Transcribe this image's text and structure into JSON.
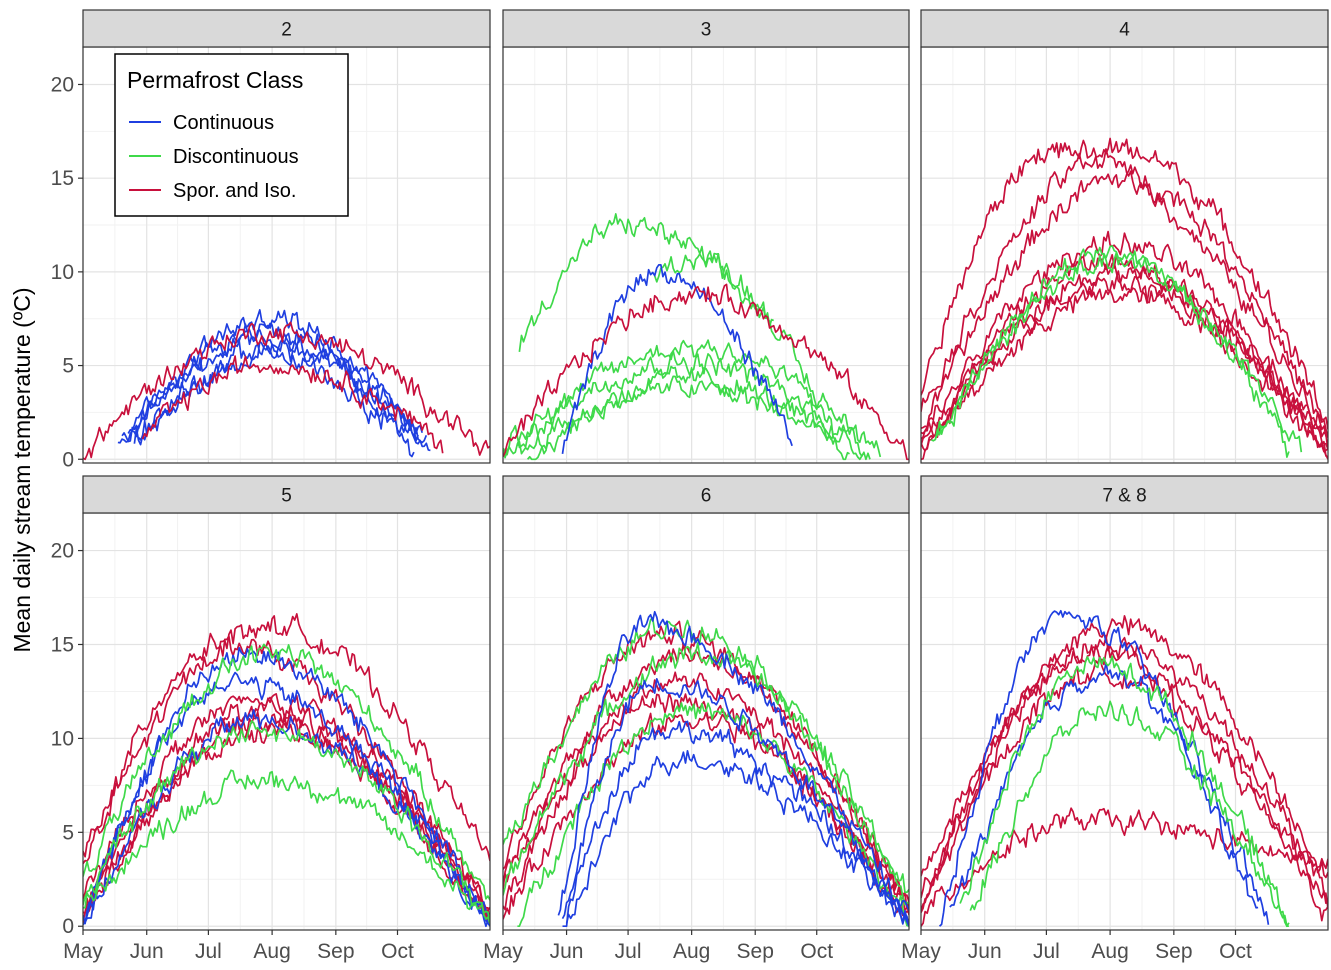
{
  "chart_data": {
    "type": "line",
    "ylabel": "Mean daily stream temperature (ºC)",
    "xlabel": "",
    "ylim": [
      0,
      20
    ],
    "y_ticks": [
      0,
      5,
      10,
      15,
      20
    ],
    "x_ticks": [
      "May",
      "Jun",
      "Jul",
      "Aug",
      "Sep",
      "Oct"
    ],
    "x_tick_days": [
      121,
      152,
      182,
      213,
      244,
      274
    ],
    "xlim_days": [
      121,
      319
    ],
    "grid": true,
    "legend": {
      "title": "Permafrost Class",
      "placement": "inside top-left of first panel",
      "entries": [
        {
          "name": "Continuous",
          "color": "#1f3fe0"
        },
        {
          "name": "Discontinuous",
          "color": "#3fd94a"
        },
        {
          "name": "Spor. and Iso.",
          "color": "#c8103c"
        }
      ]
    },
    "facets": [
      {
        "label": "2",
        "series": [
          {
            "class": "Continuous",
            "start": 138,
            "end": 290,
            "peak_day": 213,
            "peak": 7.5,
            "base_start": 0.5,
            "base_end": 0.5
          },
          {
            "class": "Continuous",
            "start": 140,
            "end": 288,
            "peak_day": 208,
            "peak": 6.8,
            "base_start": 0.8,
            "base_end": 0.8
          },
          {
            "class": "Continuous",
            "start": 143,
            "end": 284,
            "peak_day": 206,
            "peak": 6.3,
            "base_start": 1.0,
            "base_end": 1.0
          },
          {
            "class": "Continuous",
            "start": 146,
            "end": 282,
            "peak_day": 210,
            "peak": 5.5,
            "base_start": 1.0,
            "base_end": 0.5
          },
          {
            "class": "Continuous",
            "start": 148,
            "end": 286,
            "peak_day": 214,
            "peak": 5.9,
            "base_start": 1.0,
            "base_end": 1.2
          },
          {
            "class": "Spor. and Iso.",
            "start": 121,
            "end": 319,
            "peak_day": 212,
            "peak": 6.8,
            "base_start": 0.3,
            "base_end": 0.3
          },
          {
            "class": "Spor. and Iso.",
            "start": 150,
            "end": 296,
            "peak_day": 212,
            "peak": 5.1,
            "base_start": 1.2,
            "base_end": 0.8
          }
        ]
      },
      {
        "label": "3",
        "series": [
          {
            "class": "Discontinuous",
            "start": 129,
            "end": 253,
            "peak_day": 181,
            "peak": 12.5,
            "base_start": 6.0,
            "base_end": 7.0
          },
          {
            "class": "Discontinuous",
            "start": 195,
            "end": 282,
            "peak_day": 213,
            "peak": 10.8,
            "base_start": 9.5,
            "base_end": 1.5
          },
          {
            "class": "Discontinuous",
            "start": 121,
            "end": 305,
            "peak_day": 214,
            "peak": 6.0,
            "base_start": 0.3,
            "base_end": 0.3
          },
          {
            "class": "Discontinuous",
            "start": 121,
            "end": 300,
            "peak_day": 210,
            "peak": 5.2,
            "base_start": 0.5,
            "base_end": 0.3
          },
          {
            "class": "Discontinuous",
            "start": 133,
            "end": 290,
            "peak_day": 213,
            "peak": 4.3,
            "base_start": 0.0,
            "base_end": 0.3
          },
          {
            "class": "Discontinuous",
            "start": 128,
            "end": 296,
            "peak_day": 208,
            "peak": 3.8,
            "base_start": 0.3,
            "base_end": 0.3
          },
          {
            "class": "Continuous",
            "start": 150,
            "end": 262,
            "peak_day": 195,
            "peak": 10.0,
            "base_start": 0.3,
            "base_end": 1.2
          },
          {
            "class": "Spor. and Iso.",
            "start": 121,
            "end": 319,
            "peak_day": 214,
            "peak": 8.8,
            "base_start": 0.2,
            "base_end": 0.2
          }
        ]
      },
      {
        "label": "4",
        "series": [
          {
            "class": "Spor. and Iso.",
            "start": 121,
            "end": 319,
            "peak_day": 186,
            "peak": 16.5,
            "base_start": 3.5,
            "base_end": 1.5
          },
          {
            "class": "Spor. and Iso.",
            "start": 121,
            "end": 319,
            "peak_day": 219,
            "peak": 16.5,
            "base_start": 2.5,
            "base_end": 2.0
          },
          {
            "class": "Spor. and Iso.",
            "start": 121,
            "end": 319,
            "peak_day": 220,
            "peak": 15.0,
            "base_start": 1.5,
            "base_end": 1.2
          },
          {
            "class": "Spor. and Iso.",
            "start": 121,
            "end": 319,
            "peak_day": 214,
            "peak": 11.5,
            "base_start": 1.0,
            "base_end": 0.8
          },
          {
            "class": "Spor. and Iso.",
            "start": 121,
            "end": 319,
            "peak_day": 212,
            "peak": 10.5,
            "base_start": 0.5,
            "base_end": 0.5
          },
          {
            "class": "Spor. and Iso.",
            "start": 121,
            "end": 319,
            "peak_day": 216,
            "peak": 10.0,
            "base_start": 0.8,
            "base_end": 0.3
          },
          {
            "class": "Spor. and Iso.",
            "start": 121,
            "end": 319,
            "peak_day": 214,
            "peak": 9.5,
            "base_start": 0.3,
            "base_end": 0.6
          },
          {
            "class": "Spor. and Iso.",
            "start": 121,
            "end": 319,
            "peak_day": 218,
            "peak": 8.8,
            "base_start": 0.2,
            "base_end": 0.2
          },
          {
            "class": "Discontinuous",
            "start": 128,
            "end": 300,
            "peak_day": 212,
            "peak": 11.0,
            "base_start": 1.0,
            "base_end": 0.5
          },
          {
            "class": "Discontinuous",
            "start": 126,
            "end": 306,
            "peak_day": 216,
            "peak": 10.5,
            "base_start": 0.8,
            "base_end": 0.4
          }
        ]
      },
      {
        "label": "5",
        "series": [
          {
            "class": "Spor. and Iso.",
            "start": 121,
            "end": 319,
            "peak_day": 212,
            "peak": 16.0,
            "base_start": 3.8,
            "base_end": 3.5
          },
          {
            "class": "Spor. and Iso.",
            "start": 121,
            "end": 319,
            "peak_day": 188,
            "peak": 15.0,
            "base_start": 3.0,
            "base_end": 0.5
          },
          {
            "class": "Spor. and Iso.",
            "start": 121,
            "end": 319,
            "peak_day": 205,
            "peak": 12.0,
            "base_start": 1.5,
            "base_end": 1.0
          },
          {
            "class": "Spor. and Iso.",
            "start": 121,
            "end": 319,
            "peak_day": 208,
            "peak": 11.5,
            "base_start": 0.6,
            "base_end": 0.3
          },
          {
            "class": "Spor. and Iso.",
            "start": 121,
            "end": 319,
            "peak_day": 210,
            "peak": 11.0,
            "base_start": 0.3,
            "base_end": 0.5
          },
          {
            "class": "Spor. and Iso.",
            "start": 121,
            "end": 319,
            "peak_day": 213,
            "peak": 10.5,
            "base_start": 0.8,
            "base_end": 0.2
          },
          {
            "class": "Continuous",
            "start": 121,
            "end": 319,
            "peak_day": 200,
            "peak": 14.5,
            "base_start": 0.0,
            "base_end": 0.0
          },
          {
            "class": "Continuous",
            "start": 121,
            "end": 319,
            "peak_day": 193,
            "peak": 13.0,
            "base_start": 0.2,
            "base_end": 0.3
          },
          {
            "class": "Continuous",
            "start": 121,
            "end": 319,
            "peak_day": 205,
            "peak": 11.0,
            "base_start": 0.0,
            "base_end": 0.0
          },
          {
            "class": "Discontinuous",
            "start": 121,
            "end": 319,
            "peak_day": 212,
            "peak": 14.5,
            "base_start": 2.5,
            "base_end": 1.2
          },
          {
            "class": "Discontinuous",
            "start": 121,
            "end": 319,
            "peak_day": 205,
            "peak": 10.5,
            "base_start": 1.5,
            "base_end": 0.5
          },
          {
            "class": "Discontinuous",
            "start": 121,
            "end": 319,
            "peak_day": 212,
            "peak": 7.8,
            "base_start": 1.0,
            "base_end": 0.3
          }
        ]
      },
      {
        "label": "6",
        "series": [
          {
            "class": "Spor. and Iso.",
            "start": 121,
            "end": 319,
            "peak_day": 200,
            "peak": 15.5,
            "base_start": 3.5,
            "base_end": 1.0
          },
          {
            "class": "Spor. and Iso.",
            "start": 121,
            "end": 319,
            "peak_day": 210,
            "peak": 14.5,
            "base_start": 2.5,
            "base_end": 0.8
          },
          {
            "class": "Spor. and Iso.",
            "start": 121,
            "end": 319,
            "peak_day": 205,
            "peak": 13.0,
            "base_start": 2.0,
            "base_end": 0.5
          },
          {
            "class": "Spor. and Iso.",
            "start": 121,
            "end": 319,
            "peak_day": 200,
            "peak": 12.0,
            "base_start": 1.0,
            "base_end": 0.3
          },
          {
            "class": "Spor. and Iso.",
            "start": 121,
            "end": 319,
            "peak_day": 212,
            "peak": 11.0,
            "base_start": 0.5,
            "base_end": 0.6
          },
          {
            "class": "Discontinuous",
            "start": 121,
            "end": 319,
            "peak_day": 205,
            "peak": 16.0,
            "base_start": 4.0,
            "base_end": 1.5
          },
          {
            "class": "Discontinuous",
            "start": 121,
            "end": 319,
            "peak_day": 215,
            "peak": 14.5,
            "base_start": 2.0,
            "base_end": 1.0
          },
          {
            "class": "Discontinuous",
            "start": 128,
            "end": 319,
            "peak_day": 210,
            "peak": 11.5,
            "base_start": 0.0,
            "base_end": 0.5
          },
          {
            "class": "Continuous",
            "start": 148,
            "end": 319,
            "peak_day": 190,
            "peak": 16.0,
            "base_start": 0.0,
            "base_end": 0.2
          },
          {
            "class": "Continuous",
            "start": 150,
            "end": 319,
            "peak_day": 195,
            "peak": 13.0,
            "base_start": 0.0,
            "base_end": 0.0
          },
          {
            "class": "Continuous",
            "start": 150,
            "end": 319,
            "peak_day": 200,
            "peak": 10.5,
            "base_start": 0.0,
            "base_end": 0.3
          },
          {
            "class": "Continuous",
            "start": 152,
            "end": 319,
            "peak_day": 208,
            "peak": 9.0,
            "base_start": 0.0,
            "base_end": 0.0
          }
        ]
      },
      {
        "label": "7 & 8",
        "series": [
          {
            "class": "Spor. and Iso.",
            "start": 121,
            "end": 319,
            "peak_day": 215,
            "peak": 16.0,
            "base_start": 1.0,
            "base_end": 2.5
          },
          {
            "class": "Spor. and Iso.",
            "start": 121,
            "end": 319,
            "peak_day": 212,
            "peak": 15.0,
            "base_start": 1.5,
            "base_end": 1.5
          },
          {
            "class": "Spor. and Iso.",
            "start": 121,
            "end": 319,
            "peak_day": 205,
            "peak": 14.5,
            "base_start": 2.5,
            "base_end": 1.0
          },
          {
            "class": "Spor. and Iso.",
            "start": 121,
            "end": 319,
            "peak_day": 208,
            "peak": 13.5,
            "base_start": 0.8,
            "base_end": 0.5
          },
          {
            "class": "Spor. and Iso.",
            "start": 121,
            "end": 319,
            "peak_day": 200,
            "peak": 5.6,
            "base_start": 0.5,
            "base_end": 3.0
          },
          {
            "class": "Continuous",
            "start": 130,
            "end": 290,
            "peak_day": 192,
            "peak": 16.5,
            "base_start": 0.0,
            "base_end": 0.3
          },
          {
            "class": "Continuous",
            "start": 135,
            "end": 285,
            "peak_day": 210,
            "peak": 13.5,
            "base_start": 0.5,
            "base_end": 0.5
          },
          {
            "class": "Discontinuous",
            "start": 140,
            "end": 300,
            "peak_day": 205,
            "peak": 14.0,
            "base_start": 1.0,
            "base_end": 0.3
          },
          {
            "class": "Discontinuous",
            "start": 145,
            "end": 300,
            "peak_day": 210,
            "peak": 11.5,
            "base_start": 0.5,
            "base_end": 0.0
          }
        ]
      }
    ]
  }
}
